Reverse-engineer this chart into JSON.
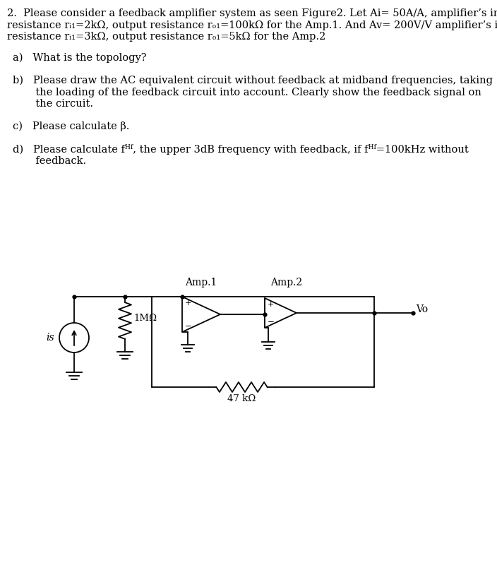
{
  "bg_color": "#ffffff",
  "text_color": "#000000",
  "title_line1": "2.  Please consider a feedback amplifier system as seen Figure2. Let Ai= 50A/A, amplifier’s input",
  "title_line2": "resistance rᵢ₁=2kΩ, output resistance rₒ₁=100kΩ for the Amp.1. And Av= 200V/V amplifier’s input",
  "title_line3": "resistance rᵢ₁=3kΩ, output resistance rₒ₁=5kΩ for the Amp.2",
  "question_a": "a)   What is the topology?",
  "question_b_line1": "b)   Please draw the AC equivalent circuit without feedback at midband frequencies, taking",
  "question_b_line2": "       the loading of the feedback circuit into account. Clearly show the feedback signal on",
  "question_b_line3": "       the circuit.",
  "question_c": "c)   Please calculate β.",
  "question_d_line1": "d)   Please calculate fᴴᶠ, the upper 3dB frequency with feedback, if fᴴᶠ=100kHz without",
  "question_d_line2": "       feedback.",
  "amp1_label": "Amp.1",
  "amp2_label": "Amp.2",
  "resistor1_label": "1MΩ",
  "resistor2_label": "47 kΩ",
  "vo_label": "Vo",
  "is_label": "is",
  "font_size_main": 10.5,
  "font_size_circuit": 9.5
}
